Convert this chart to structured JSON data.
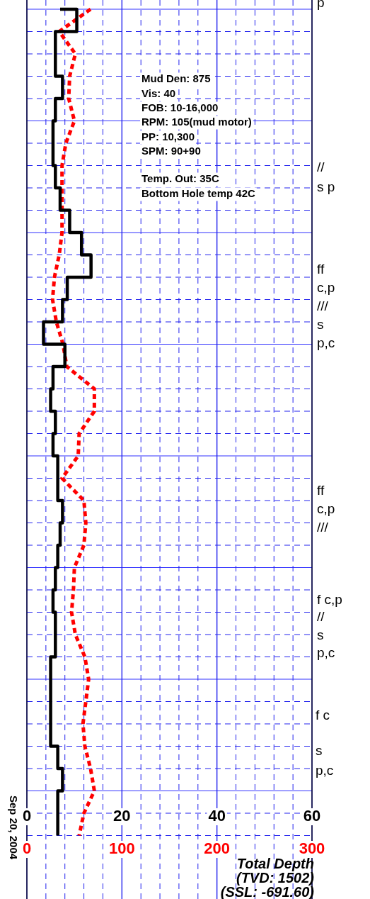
{
  "chart_data": {
    "type": "line",
    "orientation": "horizontal",
    "categories": [
      null,
      null,
      null,
      null,
      null,
      null,
      null,
      null,
      null,
      null,
      null,
      null,
      null,
      null,
      null,
      null,
      null,
      null,
      null,
      null,
      null,
      null,
      null,
      null,
      null,
      null,
      null,
      null,
      null,
      null,
      null,
      null,
      null,
      null,
      null,
      null,
      null,
      null
    ],
    "series": [
      {
        "type": "step",
        "color": "#000000",
        "line_style": "solid",
        "values": [
          7,
          10.5,
          6,
          6,
          7.5,
          6,
          5.5,
          5.5,
          6,
          7,
          9,
          11.5,
          13.5,
          8.5,
          7.5,
          3.5,
          8,
          5.5,
          5,
          6,
          5.5,
          6.5,
          6.5,
          7.5,
          7,
          6.5,
          6,
          5.5,
          6,
          6,
          5,
          5,
          5,
          5,
          6.5,
          7.5,
          6.5,
          6.5
        ]
      },
      {
        "type": "line",
        "color": "#ff0000",
        "line_style": "dashed",
        "axis": "x2",
        "values": [
          67,
          34,
          51,
          45,
          44,
          50,
          41,
          37,
          37,
          37,
          37,
          34,
          29,
          27,
          31,
          38,
          42,
          71,
          71,
          55,
          54,
          37,
          60,
          62,
          60,
          50,
          49,
          47,
          51,
          61,
          65,
          62,
          59,
          61,
          67,
          71,
          60,
          55
        ]
      }
    ],
    "xlim": [
      0,
      60
    ],
    "xticks": [
      0,
      {
        "value": 4,
        "label": null
      },
      {
        "value": 8,
        "label": null
      },
      {
        "value": 12,
        "label": null
      },
      {
        "value": 16,
        "label": null
      },
      20,
      {
        "value": 24,
        "label": null
      },
      {
        "value": 28,
        "label": null
      },
      {
        "value": 32,
        "label": null
      },
      {
        "value": 36,
        "label": null
      },
      40,
      {
        "value": 44,
        "label": null
      },
      {
        "value": 48,
        "label": null
      },
      {
        "value": 52,
        "label": null
      },
      {
        "value": 56,
        "label": null
      },
      60
    ],
    "x2lim": [
      0,
      300
    ],
    "x2ticks": [
      0,
      100,
      200,
      300
    ],
    "grid": true,
    "legend": false,
    "marker": "none",
    "annotations": [
      "Mud Den: 875",
      "Vis: 40",
      "FOB: 10-16,000",
      "RPM: 105(mud motor)",
      "PP: 10,300",
      "SPM: 90+90",
      "Temp. Out: 35C",
      "Bottom Hole temp 42C",
      "p",
      "//",
      "s p",
      "ff",
      "c,p",
      "///",
      "s",
      "p,c",
      "ff",
      "c,p",
      "///",
      "f c,p",
      "//",
      "s",
      "p,c",
      "f c",
      "s",
      "p,c",
      "Total Depth",
      "(TVD: 1502)",
      "(SSL: -691.60)",
      "Sep 20, 2004"
    ]
  }
}
